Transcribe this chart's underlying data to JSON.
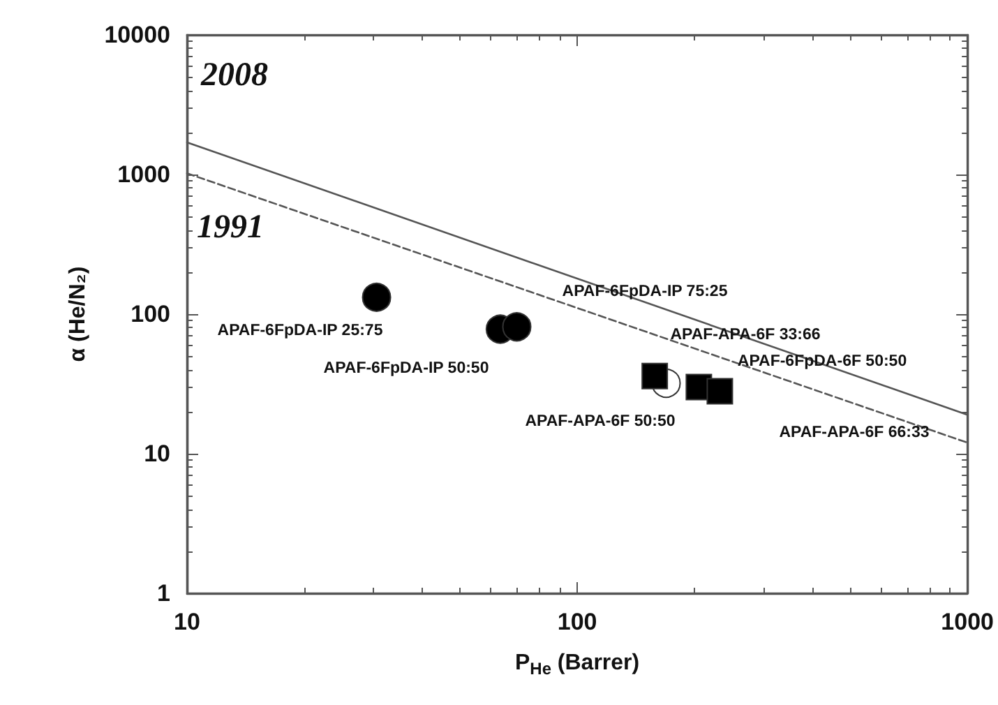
{
  "chart_data": {
    "type": "scatter",
    "xlabel": "P$_{He}$ (Barrer)",
    "ylabel": "α (He/N₂)",
    "log": "xy",
    "grid": false,
    "xlim": [
      10,
      1000
    ],
    "xticks": [
      10,
      100,
      1000
    ],
    "ylim": [
      1,
      10000
    ],
    "yticks": [
      1,
      10,
      100,
      1000,
      10000
    ],
    "series": [
      {
        "name": "2008",
        "type": "line",
        "line_style": "solid",
        "marker": "none",
        "color": "#555555",
        "x": [
          10,
          1000
        ],
        "values": [
          1700,
          19
        ]
      },
      {
        "name": "1991",
        "type": "line",
        "line_style": "dashed",
        "marker": "none",
        "color": "#555555",
        "x": [
          10,
          1000
        ],
        "values": [
          1020,
          12
        ]
      },
      {
        "marker": "circle",
        "color": "#000000",
        "x": [
          30.6,
          63.5,
          70
        ],
        "values": [
          132,
          78,
          81
        ]
      },
      {
        "marker": "circle",
        "color": "#ffffff",
        "x": [
          169
        ],
        "values": [
          32
        ]
      },
      {
        "marker": "square",
        "color": "#000000",
        "x": [
          158,
          205,
          232
        ],
        "values": [
          36,
          30,
          28
        ]
      }
    ],
    "annotations": [
      "APAF-6FpDA-IP 25:75",
      "APAF-6FpDA-IP 50:50",
      "APAF-6FpDA-IP 75:25",
      "APAF-APA-6F 50:50",
      "APAF-6FpDA-6F 50:50",
      "APAF-APA-6F 33:66",
      "APAF-APA-6F 66:33"
    ]
  }
}
